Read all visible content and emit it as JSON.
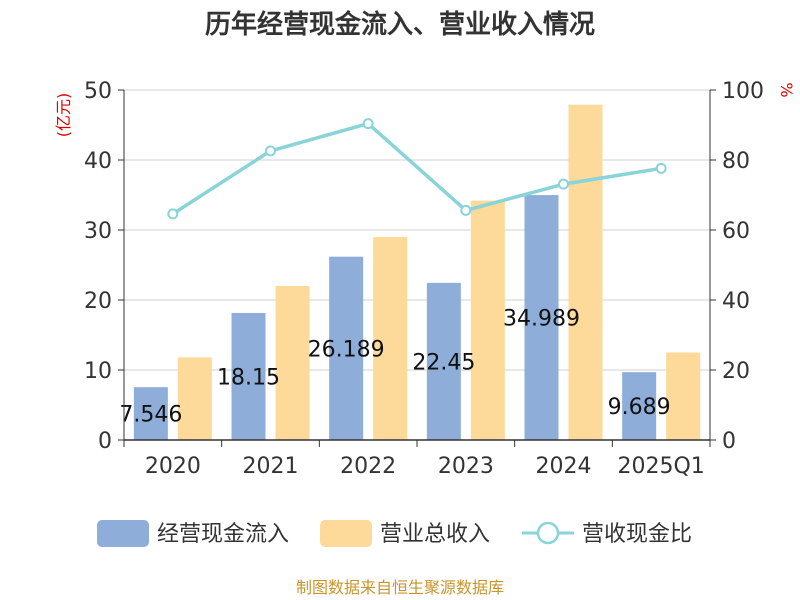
{
  "chart_data": {
    "type": "bar",
    "title": "历年经营现金流入、营业收入情况",
    "categories": [
      "2020",
      "2021",
      "2022",
      "2023",
      "2024",
      "2025Q1"
    ],
    "y_left": {
      "unit": "(亿元)",
      "ticks": [
        "0",
        "10",
        "20",
        "30",
        "40",
        "50"
      ],
      "ylim": [
        0,
        50
      ]
    },
    "y_right": {
      "unit": "%",
      "ticks": [
        "0",
        "20",
        "40",
        "60",
        "80",
        "100"
      ],
      "ylim": [
        0,
        100
      ]
    },
    "grid": true,
    "legend_position": "bottom",
    "series": [
      {
        "name": "经营现金流入",
        "kind": "bar",
        "color": "#8eadd9",
        "values": [
          7.546,
          18.15,
          26.189,
          22.45,
          34.989,
          9.689
        ],
        "labels": [
          "7.546",
          "18.15",
          "26.189",
          "22.45",
          "34.989",
          "9.689"
        ]
      },
      {
        "name": "营业总收入",
        "kind": "bar",
        "color": "#fdd99a",
        "values": [
          11.8,
          22.0,
          29.0,
          34.2,
          47.9,
          12.5
        ]
      },
      {
        "name": "营收现金比",
        "kind": "line",
        "axis": "right",
        "color": "#88d4d8",
        "values": [
          64.6,
          82.6,
          90.4,
          65.6,
          73.1,
          77.6
        ]
      }
    ],
    "unit_color": "#dd0000",
    "source": "制图数据来自恒生聚源数据库",
    "source_color": "#c8952c"
  }
}
